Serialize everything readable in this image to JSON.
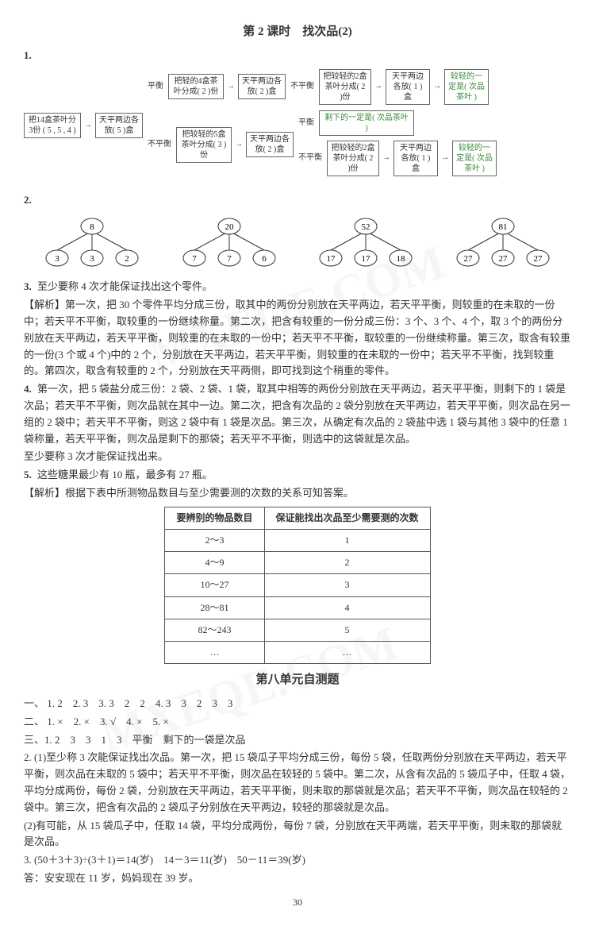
{
  "title": "第 2 课时　找次品(2)",
  "flow": {
    "start": "把14盒茶叶分3份\n( 5 , 5 , 4 )",
    "step1": "天平两边各放( 5 )盒",
    "balA": "把轻的4盒茶叶分成( 2 )份",
    "balB": "把较轻的5盒茶叶分成( 3 )份",
    "balA2": "天平两边各放( 2 )盒",
    "balB2": "天平两边各放( 2 )盒",
    "nb1": "把较轻的2盒茶叶分成( 2 )份",
    "nb2": "剩下的一定是( 次品茶叶 )",
    "nb3": "把较轻的2盒茶叶分成( 2 )份",
    "res1": "天平两边各放( 1 )盒",
    "res2": "天平两边各放( 1 )盒",
    "out1": "较轻的一定是( 次品茶叶 )",
    "out2": "较轻的一定是( 次品茶叶 )",
    "lab_balance": "平衡",
    "lab_unbalance": "不平衡"
  },
  "trees": [
    {
      "root": 8,
      "children": [
        3,
        3,
        2
      ]
    },
    {
      "root": 20,
      "children": [
        7,
        7,
        6
      ]
    },
    {
      "root": 52,
      "children": [
        17,
        17,
        18
      ]
    },
    {
      "root": 81,
      "children": [
        27,
        27,
        27
      ]
    }
  ],
  "q3": "至少要称 4 次才能保证找出这个零件。",
  "q3_analysis": "【解析】第一次，把 30 个零件平均分成三份，取其中的两份分别放在天平两边，若天平平衡，则较重的在未取的一份中；若天平不平衡，取较重的一份继续称量。第二次，把含有较重的一份分成三份：3 个、3 个、4 个，取 3 个的两份分别放在天平两边，若天平平衡，则较重的在未取的一份中；若天平不平衡，取较重的一份继续称量。第三次，取含有较重的一份(3 个或 4 个)中的 2 个，分别放在天平两边，若天平平衡，则较重的在未取的一份中；若天平不平衡，找到较重的。第四次，取含有较重的 2 个，分别放在天平两侧，即可找到这个稍重的零件。",
  "q4": "第一次，把 5 袋盐分成三份：2 袋、2 袋、1 袋，取其中相等的两份分别放在天平两边，若天平平衡，则剩下的 1 袋是次品；若天平不平衡，则次品就在其中一边。第二次，把含有次品的 2 袋分别放在天平两边，若天平平衡，则次品在另一组的 2 袋中；若天平不平衡，则这 2 袋中有 1 袋是次品。第三次，从确定有次品的 2 袋盐中选 1 袋与其他 3 袋中的任意 1 袋称量，若天平平衡，则次品是剩下的那袋；若天平不平衡，则选中的这袋就是次品。",
  "q4_conclude": "至少要称 3 次才能保证找出来。",
  "q5": "这些糖果最少有 10 瓶，最多有 27 瓶。",
  "q5_analysis": "【解析】根据下表中所测物品数目与至少需要测的次数的关系可知答案。",
  "table": {
    "headers": [
      "要辨别的物品数目",
      "保证能找出次品至少需要测的次数"
    ],
    "rows": [
      [
        "2～3",
        "1"
      ],
      [
        "4～9",
        "2"
      ],
      [
        "10～27",
        "3"
      ],
      [
        "28～81",
        "4"
      ],
      [
        "82～243",
        "5"
      ],
      [
        "…",
        "…"
      ]
    ]
  },
  "unit8_title": "第八单元自测题",
  "sec1": {
    "label": "一、",
    "items": [
      "1. 2",
      "2. 3",
      "3. 3　2　2",
      "4. 3　3　2　3　3"
    ]
  },
  "sec2": {
    "label": "二、",
    "items": [
      "1. ×",
      "2. ×",
      "3. √",
      "4. ×",
      "5. ×"
    ]
  },
  "sec3_1": "三、1. 2　3　3　1　3　平衡　剩下的一袋是次品",
  "sec3_2a": "2. (1)至少称 3 次能保证找出次品。第一次，把 15 袋瓜子平均分成三份，每份 5 袋，任取两份分别放在天平两边，若天平平衡，则次品在未取的 5 袋中；若天平不平衡，则次品在较轻的 5 袋中。第二次，从含有次品的 5 袋瓜子中，任取 4 袋，平均分成两份，每份 2 袋，分别放在天平两边，若天平平衡，则未取的那袋就是次品；若天平不平衡，则次品在较轻的 2 袋中。第三次，把含有次品的 2 袋瓜子分别放在天平两边，较轻的那袋就是次品。",
  "sec3_2b": "(2)有可能，从 15 袋瓜子中，任取 14 袋，平均分成两份，每份 7 袋，分别放在天平两端，若天平平衡，则未取的那袋就是次品。",
  "sec3_3a": "3. (50＋3＋3)÷(3＋1)＝14(岁)　14－3＝11(岁)　50－11＝39(岁)",
  "sec3_3b": "答：安安现在 11 岁，妈妈现在 39 岁。",
  "page": "30",
  "colors": {
    "text": "#333333",
    "border": "#666666",
    "tree_stroke": "#333333",
    "tree_fill": "#ffffff",
    "green": "#3a8a3a"
  }
}
